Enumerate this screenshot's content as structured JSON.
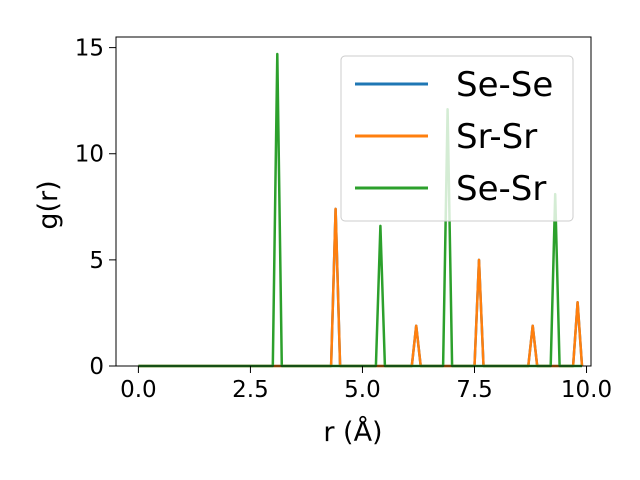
{
  "chart_data": {
    "type": "line",
    "title": "",
    "xlabel": "r (Å)",
    "ylabel": "g(r)",
    "xlim": [
      -0.5,
      10.1
    ],
    "ylim": [
      0,
      15.5
    ],
    "x_ticks": [
      0.0,
      2.5,
      5.0,
      7.5,
      10.0
    ],
    "x_tick_labels": [
      "0.0",
      "2.5",
      "5.0",
      "7.5",
      "10.0"
    ],
    "y_ticks": [
      0,
      5,
      10,
      15
    ],
    "y_tick_labels": [
      "0",
      "5",
      "10",
      "15"
    ],
    "grid": false,
    "legend_position": "top-right",
    "series": [
      {
        "name": "Se-Se",
        "color": "#1f77b4",
        "points": [
          [
            0.0,
            0
          ],
          [
            4.3,
            0
          ],
          [
            4.4,
            7.4
          ],
          [
            4.5,
            0
          ],
          [
            6.1,
            0
          ],
          [
            6.2,
            1.9
          ],
          [
            6.3,
            0
          ],
          [
            7.5,
            0
          ],
          [
            7.6,
            5.0
          ],
          [
            7.7,
            0
          ],
          [
            8.7,
            0
          ],
          [
            8.8,
            1.9
          ],
          [
            8.9,
            0
          ],
          [
            9.7,
            0
          ],
          [
            9.8,
            3.0
          ],
          [
            9.9,
            0
          ]
        ]
      },
      {
        "name": "Sr-Sr",
        "color": "#ff7f0e",
        "points": [
          [
            0.0,
            0
          ],
          [
            4.3,
            0
          ],
          [
            4.4,
            7.4
          ],
          [
            4.5,
            0
          ],
          [
            6.1,
            0
          ],
          [
            6.2,
            1.9
          ],
          [
            6.3,
            0
          ],
          [
            7.5,
            0
          ],
          [
            7.6,
            5.0
          ],
          [
            7.7,
            0
          ],
          [
            8.7,
            0
          ],
          [
            8.8,
            1.9
          ],
          [
            8.9,
            0
          ],
          [
            9.7,
            0
          ],
          [
            9.8,
            3.0
          ],
          [
            9.9,
            0
          ]
        ]
      },
      {
        "name": "Se-Sr",
        "color": "#2ca02c",
        "points": [
          [
            0.0,
            0
          ],
          [
            3.0,
            0
          ],
          [
            3.1,
            14.7
          ],
          [
            3.2,
            0
          ],
          [
            5.3,
            0
          ],
          [
            5.4,
            6.6
          ],
          [
            5.5,
            0
          ],
          [
            6.8,
            0
          ],
          [
            6.9,
            12.1
          ],
          [
            7.0,
            0
          ],
          [
            9.2,
            0
          ],
          [
            9.3,
            8.1
          ],
          [
            9.4,
            0
          ],
          [
            9.9,
            0
          ]
        ]
      }
    ]
  }
}
